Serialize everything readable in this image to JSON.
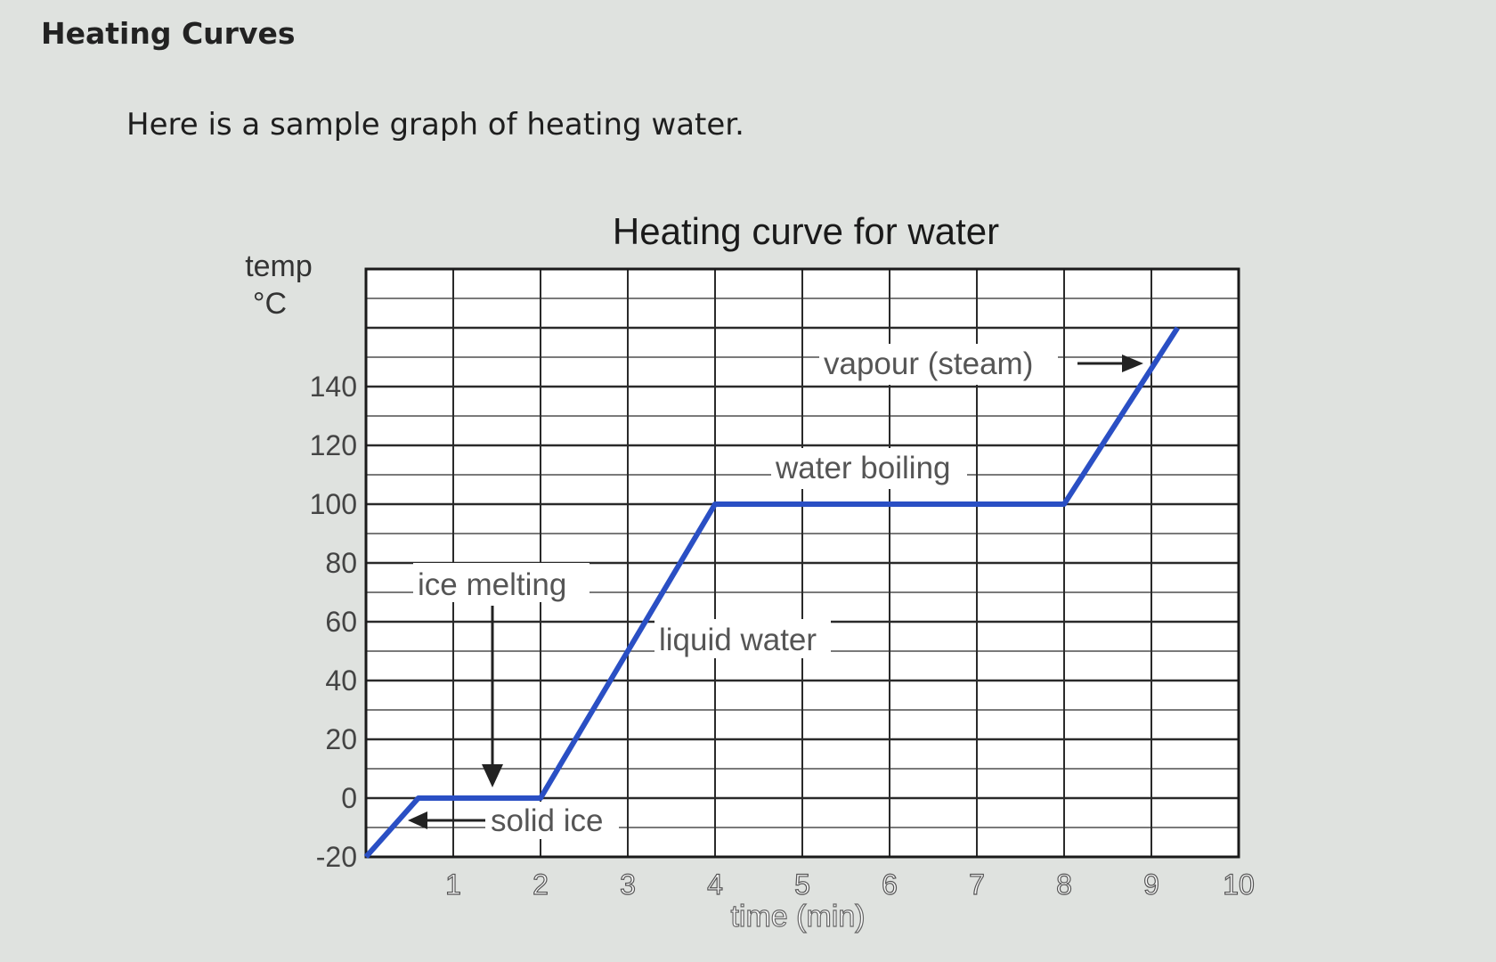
{
  "page": {
    "heading": "Heating Curves",
    "intro": "Here is a sample graph of heating water."
  },
  "colors": {
    "background": "#dfe2df",
    "grid": "#2a2a2a",
    "curve": "#2a4fc4"
  },
  "chart_data": {
    "type": "line",
    "title": "Heating curve for water",
    "ylabel_line1": "temp",
    "ylabel_line2": "°C",
    "xlabel": "time (min)",
    "xlim": [
      0,
      10
    ],
    "ylim": [
      -20,
      180
    ],
    "x_ticks": [
      "1",
      "2",
      "3",
      "4",
      "5",
      "6",
      "7",
      "8",
      "9",
      "10"
    ],
    "y_ticks": [
      "-20",
      "0",
      "20",
      "40",
      "60",
      "80",
      "100",
      "120",
      "140"
    ],
    "grid": true,
    "series": [
      {
        "x": [
          0,
          0.6,
          2.0,
          4.0,
          8.0,
          9.3
        ],
        "y": [
          -20,
          0,
          0,
          100,
          100,
          160
        ]
      }
    ],
    "annotations": {
      "solid_ice": "solid ice",
      "ice_melting": "ice melting",
      "liquid_water": "liquid water",
      "water_boiling": "water boiling",
      "vapour": "vapour (steam)"
    }
  }
}
